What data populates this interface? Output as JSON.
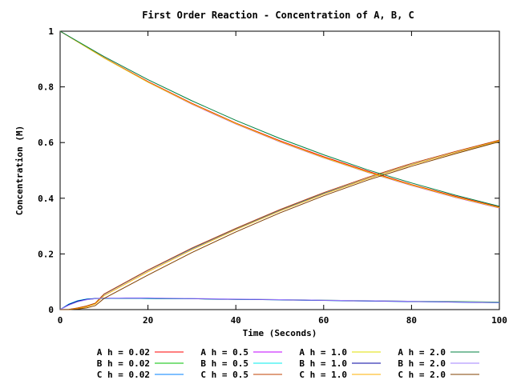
{
  "chart_data": {
    "type": "line",
    "title": "First Order Reaction - Concentration of A, B, C",
    "xlabel": "Time (Seconds)",
    "ylabel": "Concentration (M)",
    "xlim": [
      0,
      100
    ],
    "ylim": [
      0,
      1
    ],
    "xticks": [
      "0",
      "20",
      "40",
      "60",
      "80",
      "100"
    ],
    "yticks": [
      "0",
      "0.2",
      "0.4",
      "0.6",
      "0.8",
      "1"
    ],
    "grid": false,
    "legend_position": "bottom",
    "series": [
      {
        "name": "A h = 0.02",
        "color": "#ff0000",
        "x": [
          0,
          10,
          20,
          30,
          40,
          50,
          60,
          70,
          80,
          90,
          100
        ],
        "y": [
          1.0,
          0.905,
          0.819,
          0.741,
          0.67,
          0.607,
          0.549,
          0.497,
          0.449,
          0.407,
          0.368
        ]
      },
      {
        "name": "B h = 0.02",
        "color": "#00c000",
        "x": [
          0,
          2,
          4,
          6,
          8,
          10,
          15,
          20,
          30,
          40,
          50,
          60,
          70,
          80,
          90,
          100
        ],
        "y": [
          0,
          0.018,
          0.03,
          0.036,
          0.039,
          0.04,
          0.041,
          0.04,
          0.039,
          0.037,
          0.036,
          0.034,
          0.032,
          0.03,
          0.029,
          0.027
        ]
      },
      {
        "name": "C h = 0.02",
        "color": "#0080ff",
        "x": [
          0,
          2,
          4,
          6,
          8,
          10,
          20,
          30,
          40,
          50,
          60,
          70,
          80,
          90,
          100
        ],
        "y": [
          0,
          0.001,
          0.005,
          0.012,
          0.022,
          0.055,
          0.141,
          0.219,
          0.29,
          0.357,
          0.417,
          0.471,
          0.521,
          0.564,
          0.605
        ]
      },
      {
        "name": "A h = 0.5",
        "color": "#c000ff",
        "x": [
          0,
          10,
          20,
          30,
          40,
          50,
          60,
          70,
          80,
          90,
          100
        ],
        "y": [
          1.0,
          0.904,
          0.817,
          0.738,
          0.667,
          0.603,
          0.545,
          0.493,
          0.446,
          0.403,
          0.365
        ]
      },
      {
        "name": "B h = 0.5",
        "color": "#00eeee",
        "x": [
          0,
          2,
          4,
          6,
          8,
          10,
          15,
          20,
          30,
          40,
          50,
          60,
          70,
          80,
          90,
          100
        ],
        "y": [
          0,
          0.02,
          0.032,
          0.038,
          0.04,
          0.04,
          0.041,
          0.04,
          0.039,
          0.037,
          0.035,
          0.033,
          0.031,
          0.029,
          0.027,
          0.025
        ]
      },
      {
        "name": "C h = 0.5",
        "color": "#c04000",
        "x": [
          0,
          2,
          4,
          6,
          8,
          10,
          20,
          30,
          40,
          50,
          60,
          70,
          80,
          90,
          100
        ],
        "y": [
          0,
          0.001,
          0.006,
          0.013,
          0.023,
          0.056,
          0.142,
          0.221,
          0.292,
          0.359,
          0.42,
          0.475,
          0.525,
          0.568,
          0.609
        ]
      },
      {
        "name": "A h = 1.0",
        "color": "#e0e000",
        "x": [
          0,
          10,
          20,
          30,
          40,
          50,
          60,
          70,
          80,
          90,
          100
        ],
        "y": [
          1.0,
          0.904,
          0.817,
          0.739,
          0.668,
          0.604,
          0.546,
          0.494,
          0.447,
          0.404,
          0.366
        ]
      },
      {
        "name": "B h = 1.0",
        "color": "#0000a0",
        "x": [
          0,
          2,
          4,
          6,
          8,
          10,
          15,
          20,
          30,
          40,
          50,
          60,
          70,
          80,
          90,
          100
        ],
        "y": [
          0,
          0.019,
          0.031,
          0.037,
          0.04,
          0.041,
          0.041,
          0.041,
          0.039,
          0.037,
          0.035,
          0.033,
          0.031,
          0.029,
          0.027,
          0.025
        ]
      },
      {
        "name": "C h = 1.0",
        "color": "#ffb000",
        "x": [
          0,
          2,
          4,
          6,
          8,
          10,
          20,
          30,
          40,
          50,
          60,
          70,
          80,
          90,
          100
        ],
        "y": [
          0,
          0.0,
          0.004,
          0.01,
          0.02,
          0.05,
          0.136,
          0.215,
          0.287,
          0.354,
          0.415,
          0.47,
          0.52,
          0.564,
          0.606
        ]
      },
      {
        "name": "A h = 2.0",
        "color": "#008040",
        "x": [
          0,
          10,
          20,
          30,
          40,
          50,
          60,
          70,
          80,
          90,
          100
        ],
        "y": [
          1.0,
          0.909,
          0.826,
          0.75,
          0.68,
          0.615,
          0.556,
          0.502,
          0.455,
          0.411,
          0.371
        ]
      },
      {
        "name": "B h = 2.0",
        "color": "#a080ff",
        "x": [
          0,
          2,
          4,
          6,
          8,
          10,
          15,
          20,
          30,
          40,
          50,
          60,
          70,
          80,
          90,
          100
        ],
        "y": [
          0,
          0.016,
          0.028,
          0.035,
          0.039,
          0.041,
          0.042,
          0.042,
          0.04,
          0.038,
          0.036,
          0.034,
          0.032,
          0.03,
          0.028,
          0.026
        ]
      },
      {
        "name": "C h = 2.0",
        "color": "#804000",
        "x": [
          0,
          2,
          4,
          6,
          8,
          10,
          20,
          30,
          40,
          50,
          60,
          70,
          80,
          90,
          100
        ],
        "y": [
          0,
          0.0,
          0.002,
          0.006,
          0.014,
          0.04,
          0.124,
          0.205,
          0.279,
          0.347,
          0.409,
          0.465,
          0.515,
          0.56,
          0.603
        ]
      }
    ]
  }
}
